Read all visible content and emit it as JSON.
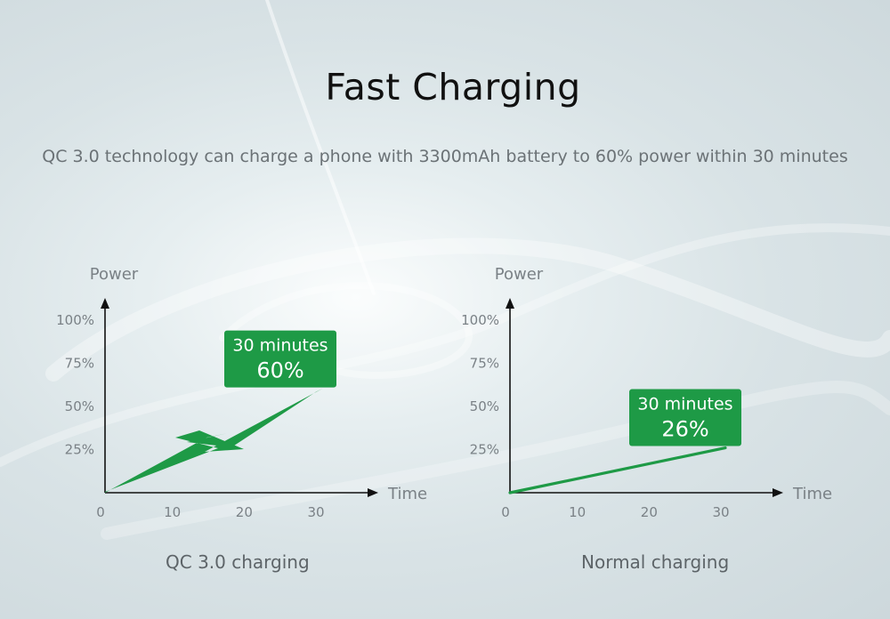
{
  "page": {
    "title": "Fast Charging",
    "subtitle": "QC 3.0 technology can charge a phone with 3300mAh battery to 60% power within 30 minutes"
  },
  "colors": {
    "accent": "#1e9a46",
    "axis": "#111111",
    "label": "#7a8186"
  },
  "chart_data": [
    {
      "type": "line",
      "caption": "QC 3.0 charging",
      "ylabel": "Power",
      "xlabel": "Time",
      "x_ticks": [
        "0",
        "10",
        "20",
        "30"
      ],
      "y_ticks": [
        "25%",
        "50%",
        "75%",
        "100%"
      ],
      "xlim": [
        0,
        30
      ],
      "ylim": [
        0,
        100
      ],
      "series": [
        {
          "x": [
            0,
            30
          ],
          "y": [
            0,
            60
          ],
          "style": "lightning-bolt"
        }
      ],
      "callout": {
        "line1": "30 minutes",
        "line2": "60%"
      }
    },
    {
      "type": "line",
      "caption": "Normal charging",
      "ylabel": "Power",
      "xlabel": "Time",
      "x_ticks": [
        "0",
        "10",
        "20",
        "30"
      ],
      "y_ticks": [
        "25%",
        "50%",
        "75%",
        "100%"
      ],
      "xlim": [
        0,
        30
      ],
      "ylim": [
        0,
        100
      ],
      "series": [
        {
          "x": [
            0,
            30
          ],
          "y": [
            0,
            26
          ],
          "style": "line"
        }
      ],
      "callout": {
        "line1": "30 minutes",
        "line2": "26%"
      }
    }
  ]
}
